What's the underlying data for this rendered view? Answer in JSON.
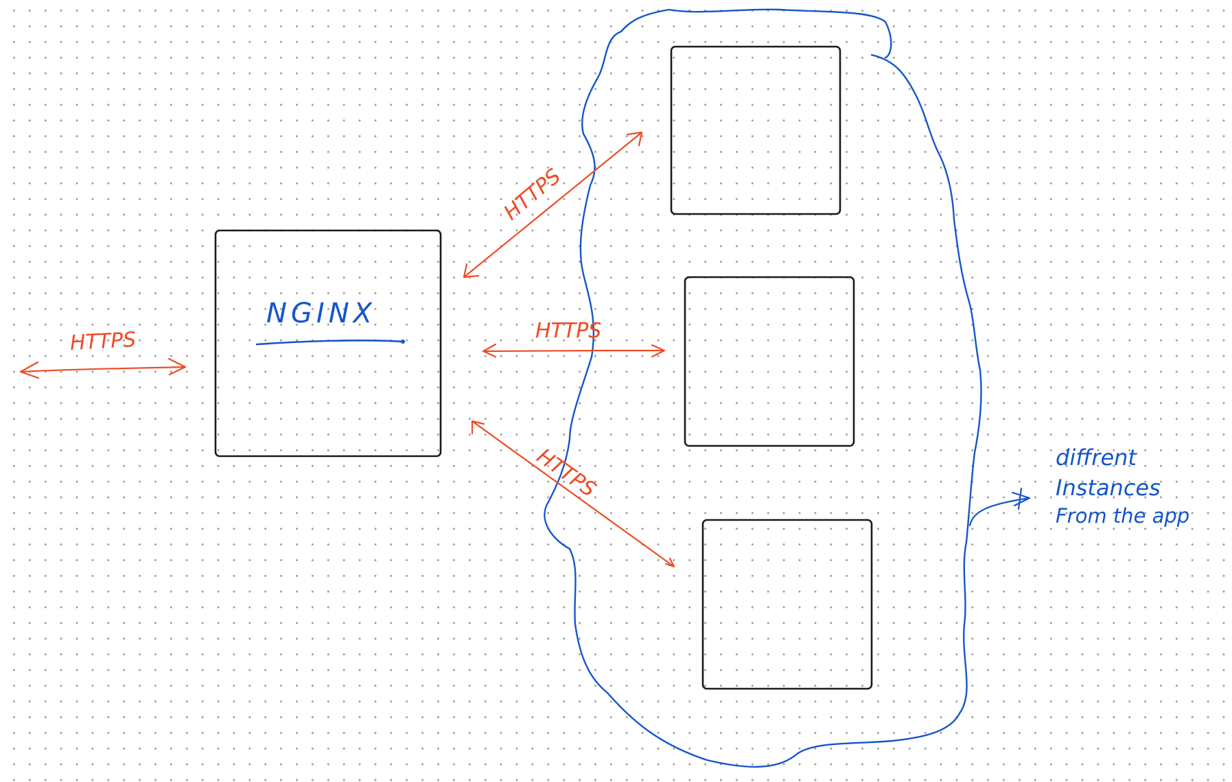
{
  "colors": {
    "background": "#ffffff",
    "dots": "#9a9a9a",
    "box_stroke": "#1a1a1a",
    "https_arrow": "#ef4a25",
    "annotation_blue": "#1456c8"
  },
  "nginx_box": {
    "label": "NGINX"
  },
  "client_link": {
    "label": "HTTPS"
  },
  "instance_links": [
    {
      "label": "HTTPS"
    },
    {
      "label": "HTTPS"
    },
    {
      "label": "HTTPS"
    }
  ],
  "instances_annotation": {
    "lines": [
      "diffrent",
      "Instances",
      "From the app"
    ]
  }
}
